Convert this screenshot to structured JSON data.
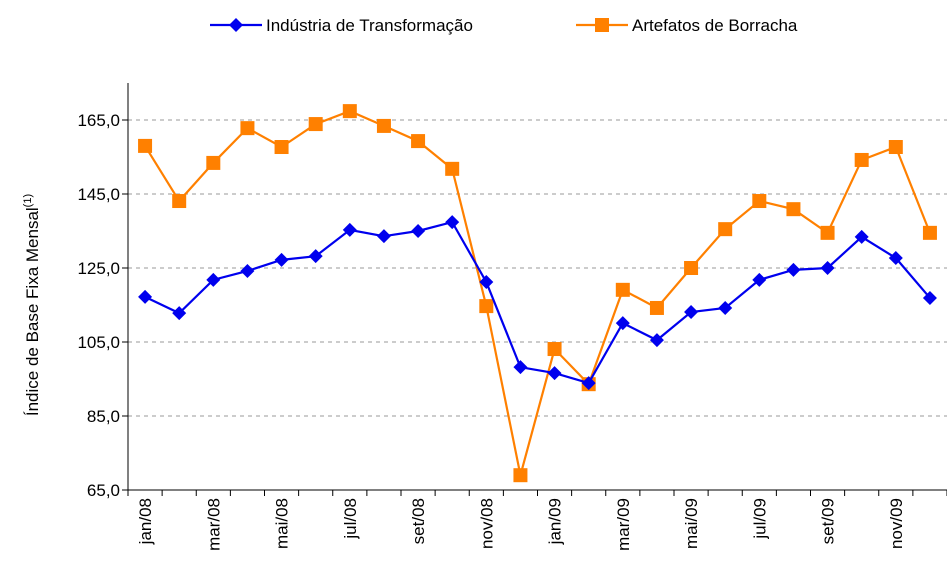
{
  "chart_data": {
    "type": "line",
    "ylabel": "Índice de Base Fixa Mensal",
    "ylabel_superscript": "(1)",
    "categories": [
      "jan/08",
      null,
      "mar/08",
      null,
      "mai/08",
      null,
      "jul/08",
      null,
      "set/08",
      null,
      "nov/08",
      null,
      "jan/09",
      null,
      "mar/09",
      null,
      "mai/09",
      null,
      "jul/09",
      null,
      "set/09",
      null,
      "nov/09",
      null
    ],
    "series": [
      {
        "name": "Indústria de Transformação",
        "color": "#0000ee",
        "marker": "diamond",
        "values": [
          117.2,
          112.8,
          121.8,
          124.2,
          127.2,
          128.2,
          135.3,
          133.6,
          135.0,
          137.4,
          121.2,
          98.2,
          96.6,
          93.9,
          110.1,
          105.5,
          113.1,
          114.2,
          121.8,
          124.5,
          125.0,
          133.4,
          127.7,
          116.9
        ]
      },
      {
        "name": "Artefatos de Borracha",
        "color": "#ff8000",
        "marker": "square",
        "values": [
          158.0,
          143.1,
          153.4,
          162.8,
          157.7,
          163.9,
          167.4,
          163.4,
          159.3,
          151.8,
          114.7,
          69.0,
          103.1,
          93.6,
          119.1,
          114.2,
          125.0,
          135.5,
          143.1,
          140.9,
          134.5,
          154.2,
          157.7,
          134.5
        ]
      }
    ],
    "ylim": [
      65,
      175
    ],
    "yticks": [
      {
        "value": 65,
        "label": "65,0"
      },
      {
        "value": 85,
        "label": "85,0"
      },
      {
        "value": 105,
        "label": "105,0"
      },
      {
        "value": 125,
        "label": "125,0"
      },
      {
        "value": 145,
        "label": "145,0"
      },
      {
        "value": 165,
        "label": "165,0"
      }
    ],
    "grid": true,
    "legend": "top"
  }
}
